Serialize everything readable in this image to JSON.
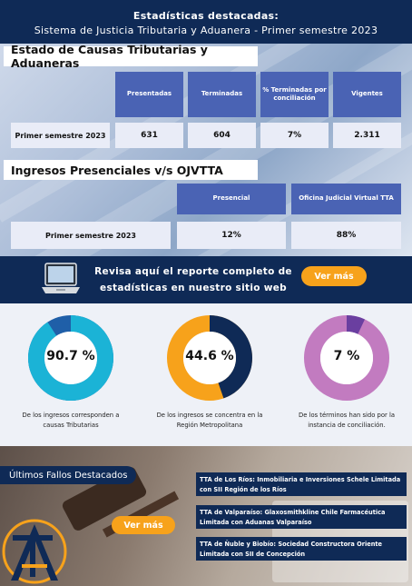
{
  "header": {
    "title": "Estadísticas destacadas:",
    "subtitle": "Sistema de Justicia Tributaria y Aduanera - Primer semestre 2023"
  },
  "causas": {
    "title": "Estado de Causas Tributarias y Aduaneras",
    "columns": [
      "Presentadas",
      "Terminadas",
      "% Terminadas por conciliación",
      "Vigentes"
    ],
    "row_label": "Primer semestre 2023",
    "values": [
      "631",
      "604",
      "7%",
      "2.311"
    ]
  },
  "ingresos": {
    "title": "Ingresos Presenciales v/s OJVTTA",
    "columns": [
      "Presencial",
      "Oficina Judicial Virtual TTA"
    ],
    "row_label": "Primer semestre 2023",
    "values": [
      "12%",
      "88%"
    ]
  },
  "report_band": {
    "text": "Revisa aquí el reporte completo de estadísticas en nuestro sitio web",
    "button": "Ver más",
    "icon": "laptop-icon"
  },
  "donuts": [
    {
      "value": "90.7 %",
      "fraction": 0.907,
      "main_color": "#1bb3d6",
      "rest_color": "#1f5fa8",
      "caption": "De los ingresos corresponden a causas Tributarias"
    },
    {
      "value": "44.6 %",
      "fraction": 0.446,
      "main_color": "#0f2a56",
      "rest_color": "#f7a21b",
      "caption": "De los ingresos se concentra en la Región Metropolitana"
    },
    {
      "value": "7 %",
      "fraction": 0.07,
      "main_color": "#6a3fa0",
      "rest_color": "#c27bc0",
      "caption": "De los términos han sido por la instancia de conciliación."
    }
  ],
  "fallos": {
    "title": "Últimos Fallos Destacados",
    "button": "Ver más",
    "logo_text": "TA",
    "items": [
      "TTA de Los Ríos: Inmobiliaria e Inversiones Schele Limitada con SII Región de los Ríos",
      "TTA de Valparaíso: Glaxosmithkline Chile Farmacéutica Limitada con Aduanas Valparaíso",
      "TTA de Ñuble y Biobío: Sociedad Constructora Oriente Limitada con SII de Concepción"
    ]
  }
}
